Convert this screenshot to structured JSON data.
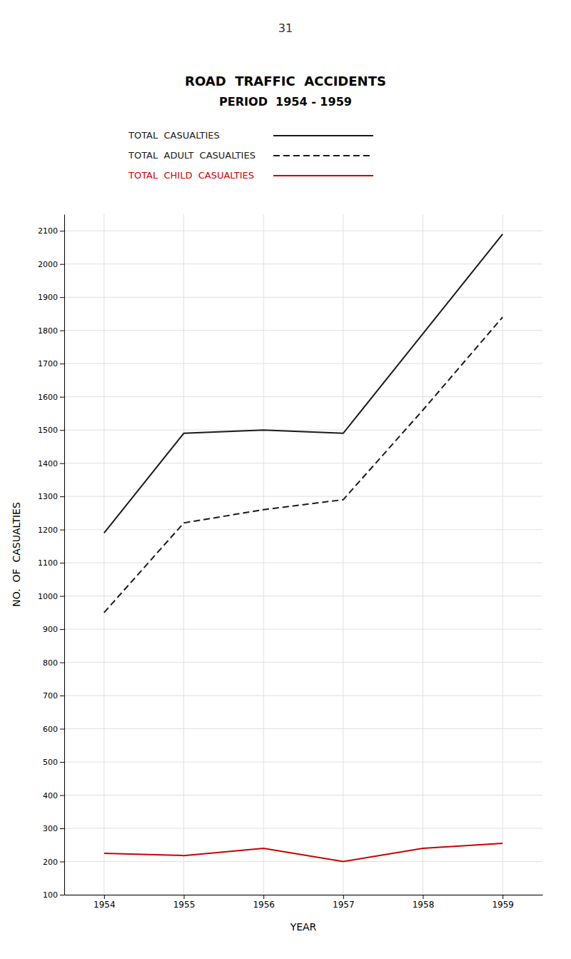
{
  "chart_data": {
    "type": "line",
    "title": "ROAD  TRAFFIC  ACCIDENTS",
    "subtitle": "PERIOD  1954 - 1959",
    "annotations": [
      "31"
    ],
    "x_label": "YEAR",
    "y_label": "NO.  OF  CASUALTIES",
    "x": [
      1954,
      1955,
      1956,
      1957,
      1958,
      1959
    ],
    "series": [
      {
        "name": "TOTAL  CASUALTIES",
        "color": "#1a1a1a",
        "line_style": "solid",
        "values": [
          1190,
          1490,
          1500,
          1490,
          1790,
          2090
        ]
      },
      {
        "name": "TOTAL  ADULT  CASUALTIES",
        "color": "#1a1a1a",
        "line_style": "dashed",
        "values": [
          950,
          1220,
          1260,
          1290,
          1560,
          1840
        ]
      },
      {
        "name": "TOTAL  CHILD  CASUALTIES",
        "color": "#cc0000",
        "line_style": "solid",
        "values": [
          225,
          218,
          240,
          200,
          240,
          255
        ]
      }
    ],
    "xlim": [
      1953.5,
      1959.5
    ],
    "xticks": [
      1954,
      1955,
      1956,
      1957,
      1958,
      1959
    ],
    "ylim": [
      100,
      2150
    ],
    "yticks": [
      100,
      200,
      300,
      400,
      500,
      600,
      700,
      800,
      900,
      1000,
      1100,
      1200,
      1300,
      1400,
      1500,
      1600,
      1700,
      1800,
      1900,
      2000,
      2100
    ],
    "grid": true,
    "legend": "top"
  }
}
